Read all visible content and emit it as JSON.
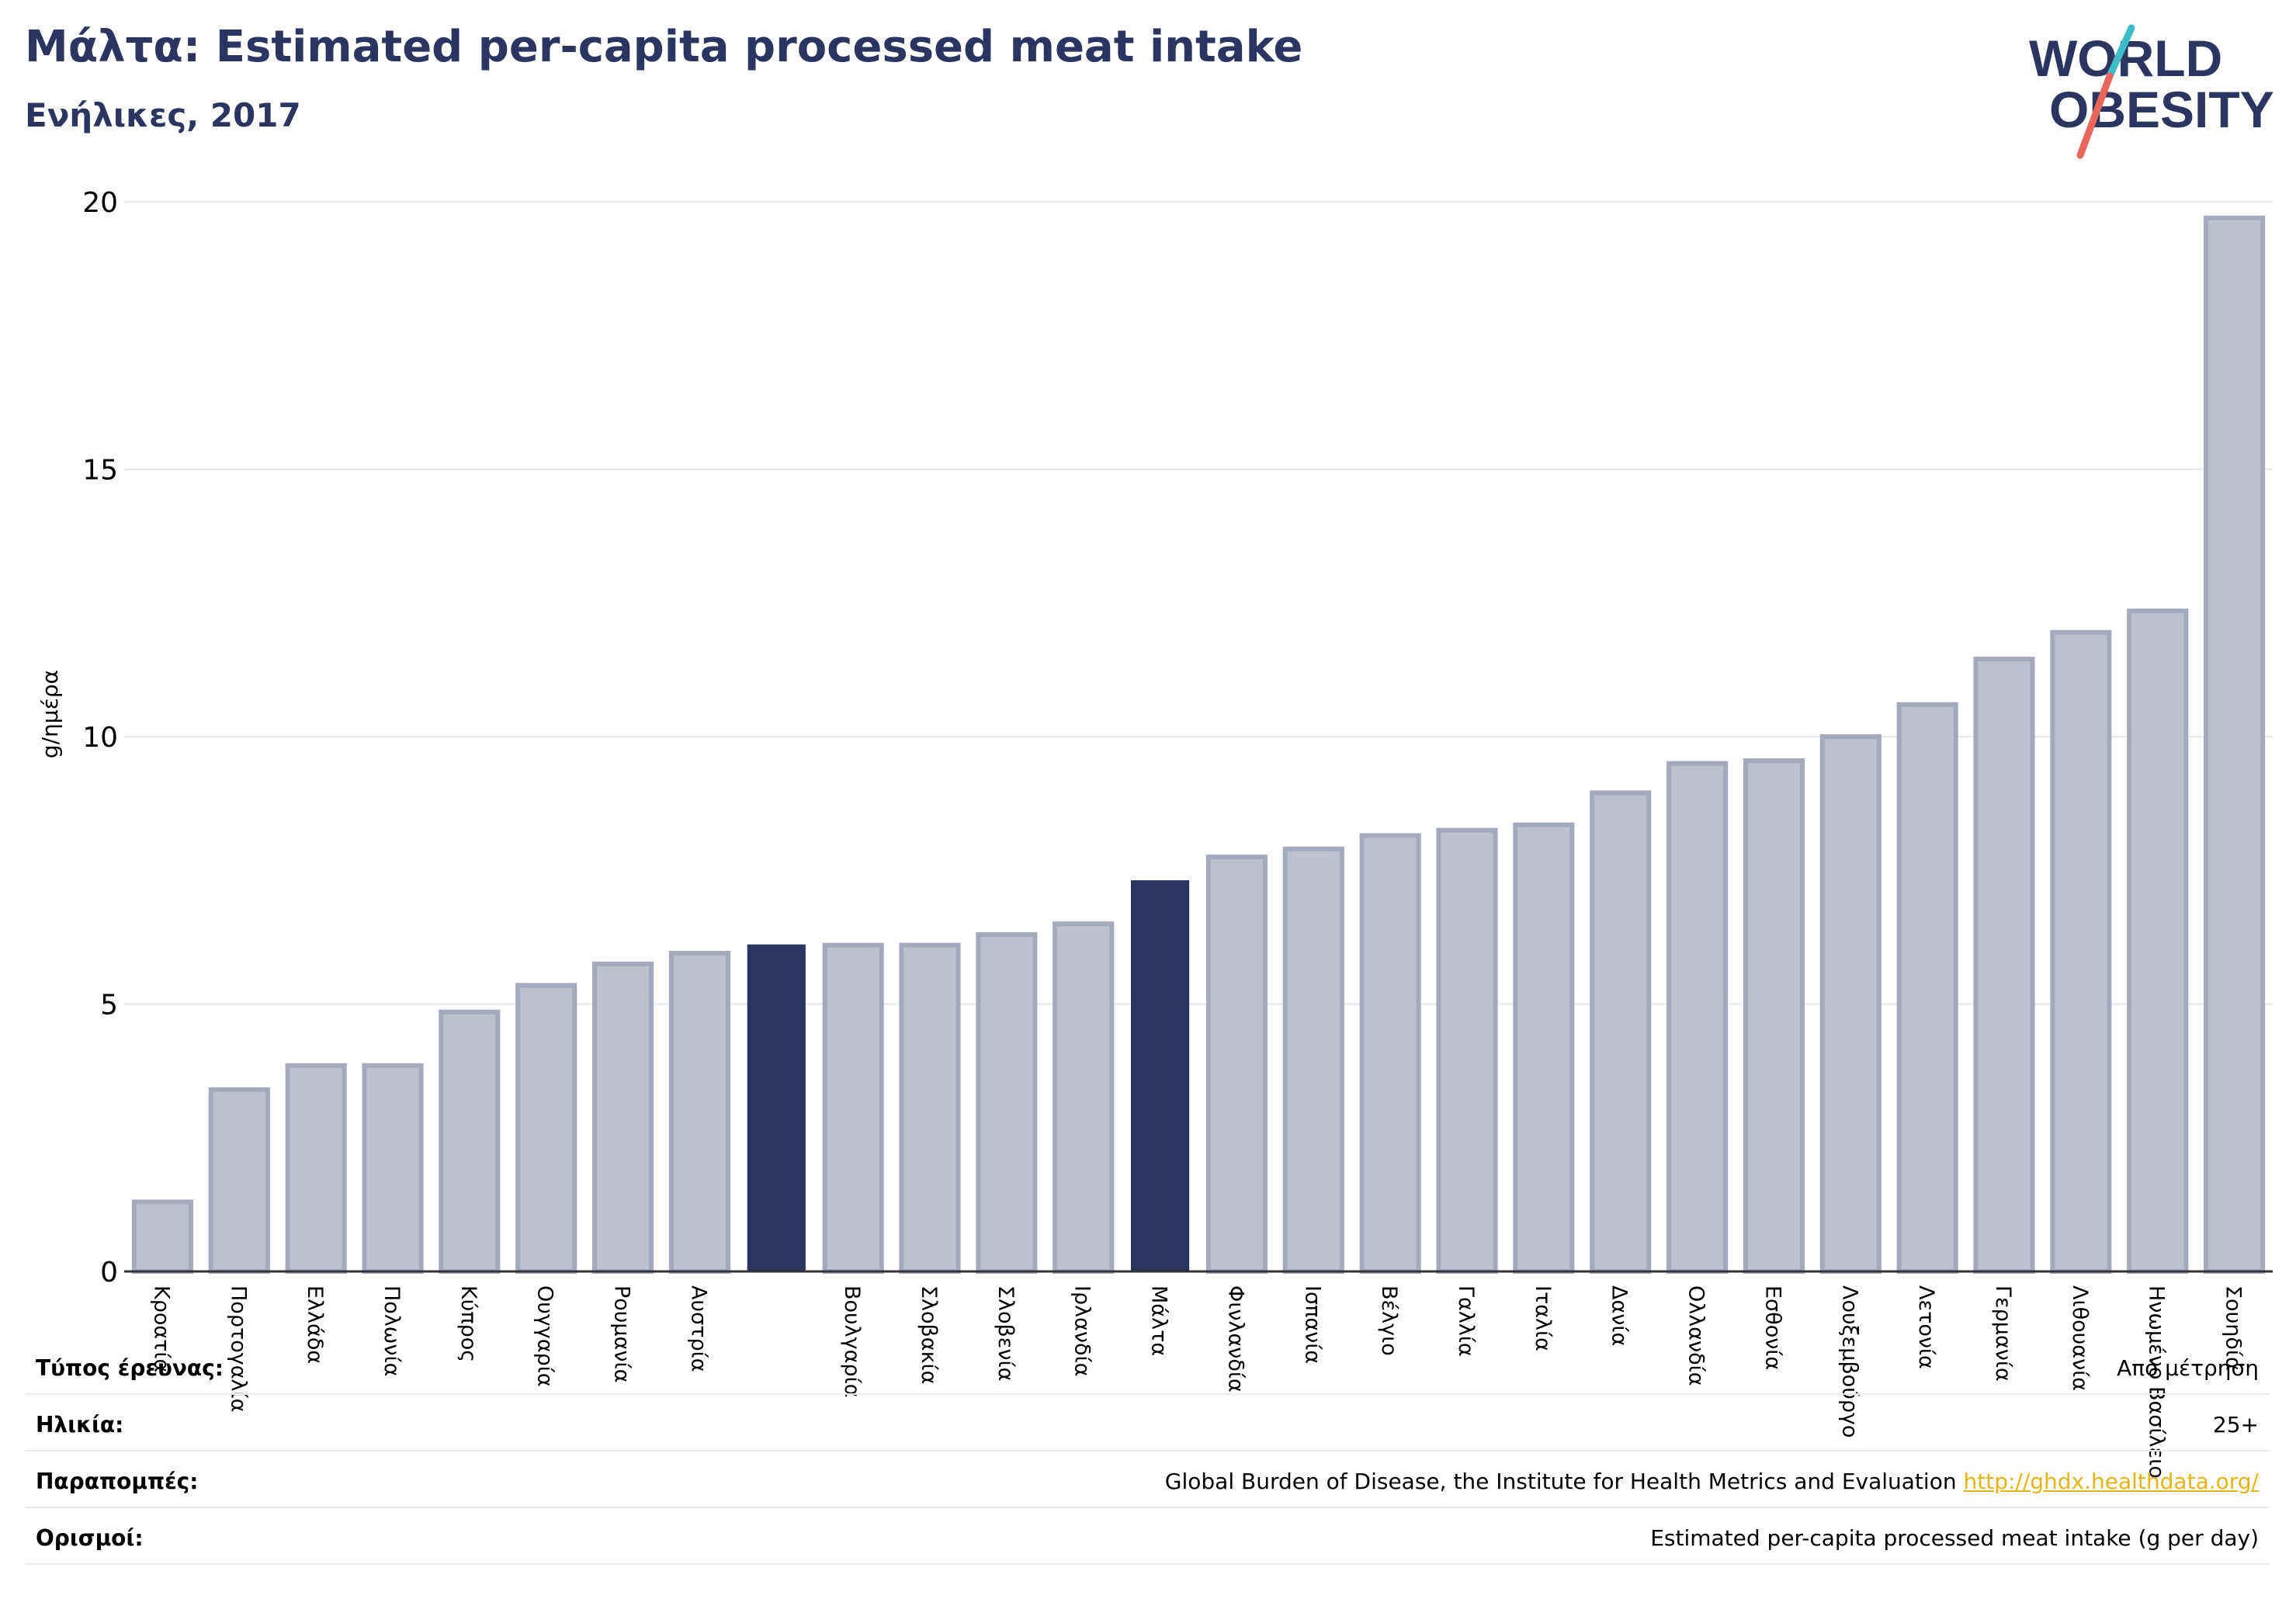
{
  "header": {
    "title": "Μάλτα: Estimated per-capita processed meat intake",
    "subtitle": "Ενήλικες, 2017"
  },
  "logo": {
    "line1": "WORLD",
    "line2": "OBESITY"
  },
  "colors": {
    "bar": "#bcc0cf",
    "bar_border": "#a5a9be",
    "highlight": "#2b3560",
    "grid": "#e6e9ee",
    "title": "#2b3560",
    "accent_teal": "#3bbcc6",
    "accent_red": "#e8665a"
  },
  "chart_data": {
    "type": "bar",
    "ylabel": "g/ημέρα",
    "ylim": [
      0,
      20
    ],
    "yticks": [
      0,
      5,
      10,
      15,
      20
    ],
    "grid": true,
    "highlight": [
      "",
      "Μάλτα"
    ],
    "categories": [
      "Κροατία",
      "Πορτογαλία",
      "Ελλάδα",
      "Πολωνία",
      "Κύπρος",
      "Ουγγαρία",
      "Ρουμανία",
      "Αυστρία",
      "",
      "Βουλγαρία",
      "Σλοβακία",
      "Σλοβενία",
      "Ιρλανδία",
      "Μάλτα",
      "Φινλανδία",
      "Ισπανία",
      "Βέλγιο",
      "Γαλλία",
      "Ιταλία",
      "Δανία",
      "Ολλανδία",
      "Εσθονία",
      "Λουξεμβούργο",
      "Λετονία",
      "Γερμανία",
      "Λιθουανία",
      "Ηνωμένο Βασίλειο",
      "Σουηδία"
    ],
    "values": [
      1.3,
      3.4,
      3.85,
      3.85,
      4.85,
      5.35,
      5.75,
      5.95,
      6.1,
      6.1,
      6.1,
      6.3,
      6.5,
      7.3,
      7.75,
      7.9,
      8.15,
      8.25,
      8.35,
      8.95,
      9.5,
      9.55,
      10.0,
      10.6,
      11.45,
      11.95,
      12.35,
      19.7
    ]
  },
  "info": {
    "survey_type_label": "Τύπος έρευνας:",
    "survey_type_value": "Από μέτρηση",
    "age_label": "Ηλικία:",
    "age_value": "25+",
    "references_label": "Παραπομπές:",
    "references_value": "Global Burden of Disease, the Institute for Health Metrics and Evaluation",
    "references_link": "http://ghdx.healthdata.org/",
    "definitions_label": "Ορισμοί:",
    "definitions_value": "Estimated per-capita processed meat intake (g per day)"
  }
}
